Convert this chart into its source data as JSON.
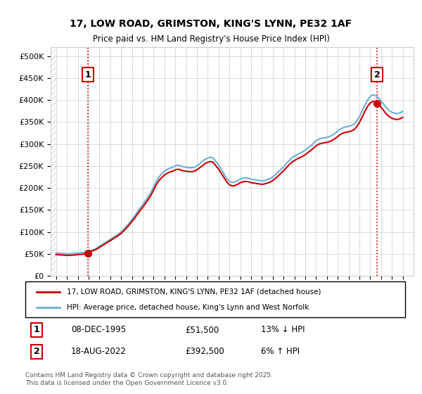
{
  "title_line1": "17, LOW ROAD, GRIMSTON, KING'S LYNN, PE32 1AF",
  "title_line2": "Price paid vs. HM Land Registry's House Price Index (HPI)",
  "ylabel_ticks": [
    "£0",
    "£50K",
    "£100K",
    "£150K",
    "£200K",
    "£250K",
    "£300K",
    "£350K",
    "£400K",
    "£450K",
    "£500K"
  ],
  "ytick_values": [
    0,
    50000,
    100000,
    150000,
    200000,
    250000,
    300000,
    350000,
    400000,
    450000,
    500000
  ],
  "ylim": [
    0,
    520000
  ],
  "xlim_start": 1992.5,
  "xlim_end": 2026.0,
  "sale1_year": 1995.93,
  "sale1_price": 51500,
  "sale1_label": "1",
  "sale1_date": "08-DEC-1995",
  "sale1_pct": "13% ↓ HPI",
  "sale2_year": 2022.63,
  "sale2_price": 392500,
  "sale2_label": "2",
  "sale2_date": "18-AUG-2022",
  "sale2_pct": "6% ↑ HPI",
  "property_color": "#cc0000",
  "hpi_color": "#6ab0d4",
  "hatch_color": "#cccccc",
  "grid_color": "#cccccc",
  "background_color": "#ffffff",
  "legend_property": "17, LOW ROAD, GRIMSTON, KING'S LYNN, PE32 1AF (detached house)",
  "legend_hpi": "HPI: Average price, detached house, King's Lynn and West Norfolk",
  "footer": "Contains HM Land Registry data © Crown copyright and database right 2025.\nThis data is licensed under the Open Government Licence v3.0.",
  "hpi_data_x": [
    1993.0,
    1993.25,
    1993.5,
    1993.75,
    1994.0,
    1994.25,
    1994.5,
    1994.75,
    1995.0,
    1995.25,
    1995.5,
    1995.75,
    1996.0,
    1996.25,
    1996.5,
    1996.75,
    1997.0,
    1997.25,
    1997.5,
    1997.75,
    1998.0,
    1998.25,
    1998.5,
    1998.75,
    1999.0,
    1999.25,
    1999.5,
    1999.75,
    2000.0,
    2000.25,
    2000.5,
    2000.75,
    2001.0,
    2001.25,
    2001.5,
    2001.75,
    2002.0,
    2002.25,
    2002.5,
    2002.75,
    2003.0,
    2003.25,
    2003.5,
    2003.75,
    2004.0,
    2004.25,
    2004.5,
    2004.75,
    2005.0,
    2005.25,
    2005.5,
    2005.75,
    2006.0,
    2006.25,
    2006.5,
    2006.75,
    2007.0,
    2007.25,
    2007.5,
    2007.75,
    2008.0,
    2008.25,
    2008.5,
    2008.75,
    2009.0,
    2009.25,
    2009.5,
    2009.75,
    2010.0,
    2010.25,
    2010.5,
    2010.75,
    2011.0,
    2011.25,
    2011.5,
    2011.75,
    2012.0,
    2012.25,
    2012.5,
    2012.75,
    2013.0,
    2013.25,
    2013.5,
    2013.75,
    2014.0,
    2014.25,
    2014.5,
    2014.75,
    2015.0,
    2015.25,
    2015.5,
    2015.75,
    2016.0,
    2016.25,
    2016.5,
    2016.75,
    2017.0,
    2017.25,
    2017.5,
    2017.75,
    2018.0,
    2018.25,
    2018.5,
    2018.75,
    2019.0,
    2019.25,
    2019.5,
    2019.75,
    2020.0,
    2020.25,
    2020.5,
    2020.75,
    2021.0,
    2021.25,
    2021.5,
    2021.75,
    2022.0,
    2022.25,
    2022.5,
    2022.75,
    2023.0,
    2023.25,
    2023.5,
    2023.75,
    2024.0,
    2024.25,
    2024.5,
    2024.75,
    2025.0
  ],
  "hpi_data_y": [
    52000,
    51500,
    51000,
    50500,
    50000,
    50200,
    50500,
    51000,
    52000,
    52500,
    53000,
    54000,
    56000,
    58000,
    60000,
    63000,
    67000,
    71000,
    75000,
    79000,
    83000,
    87000,
    91000,
    95000,
    100000,
    106000,
    113000,
    120000,
    128000,
    136000,
    145000,
    154000,
    162000,
    171000,
    180000,
    190000,
    202000,
    215000,
    225000,
    232000,
    238000,
    242000,
    245000,
    247000,
    250000,
    252000,
    250000,
    248000,
    247000,
    246000,
    246000,
    247000,
    250000,
    255000,
    260000,
    265000,
    268000,
    270000,
    268000,
    260000,
    252000,
    242000,
    232000,
    222000,
    215000,
    212000,
    213000,
    216000,
    220000,
    222000,
    223000,
    222000,
    220000,
    219000,
    218000,
    217000,
    216000,
    217000,
    219000,
    221000,
    225000,
    230000,
    236000,
    242000,
    248000,
    255000,
    262000,
    268000,
    272000,
    276000,
    279000,
    282000,
    286000,
    291000,
    296000,
    301000,
    307000,
    311000,
    313000,
    314000,
    315000,
    317000,
    320000,
    324000,
    329000,
    334000,
    337000,
    339000,
    340000,
    342000,
    345000,
    352000,
    362000,
    375000,
    388000,
    400000,
    408000,
    412000,
    410000,
    405000,
    398000,
    390000,
    382000,
    376000,
    372000,
    370000,
    369000,
    371000,
    374000
  ]
}
